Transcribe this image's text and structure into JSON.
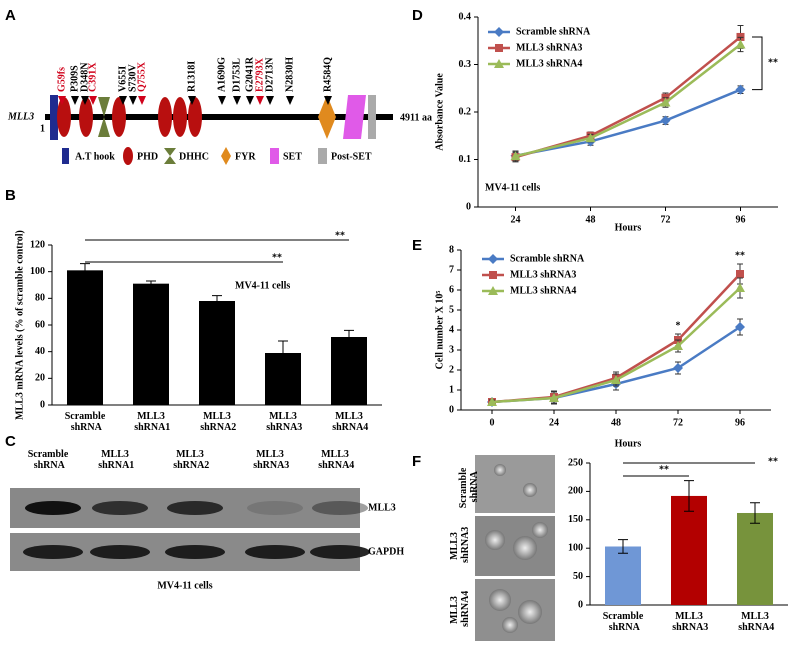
{
  "panel_labels": [
    "A",
    "B",
    "C",
    "D",
    "E",
    "F"
  ],
  "diagram_a": {
    "gene": "MLL3",
    "start": "1",
    "end": "4911 aa",
    "mutations": [
      {
        "label": "G59fs",
        "color": "#d0021b"
      },
      {
        "label": "P309S",
        "color": "#000000"
      },
      {
        "label": "D348N",
        "color": "#000000"
      },
      {
        "label": "C391X",
        "color": "#d0021b"
      },
      {
        "label": "V655I",
        "color": "#000000"
      },
      {
        "label": "S730V",
        "color": "#000000"
      },
      {
        "label": "Q755X",
        "color": "#d0021b"
      },
      {
        "label": "R1318I",
        "color": "#000000"
      },
      {
        "label": "A1690G",
        "color": "#000000"
      },
      {
        "label": "D1753L",
        "color": "#000000"
      },
      {
        "label": "G2041R",
        "color": "#000000"
      },
      {
        "label": "E2793X",
        "color": "#d0021b"
      },
      {
        "label": "D2713N",
        "color": "#000000"
      },
      {
        "label": "N2830H",
        "color": "#000000"
      },
      {
        "label": "R4584Q",
        "color": "#000000"
      }
    ],
    "legend": [
      "A.T hook",
      "PHD",
      "DHHC",
      "FYR",
      "SET",
      "Post-SET"
    ]
  },
  "blot_c": {
    "lanes": [
      "Scramble shRNA",
      "MLL3 shRNA1",
      "MLL3 shRNA2",
      "MLL3 shRNA3",
      "MLL3 shRNA4"
    ],
    "bands": [
      "MLL3",
      "GAPDH"
    ],
    "caption": "MV4-11 cells"
  },
  "images_f": {
    "rows": [
      "Scramble shRNA",
      "MLL3 shRNA3",
      "MLL3 shRNA4"
    ]
  },
  "chart_data": [
    {
      "type": "bar",
      "ylabel": "MLL3 mRNA levels (% of scramble control)",
      "categories": [
        "Scramble shRNA",
        "MLL3 shRNA1",
        "MLL3 shRNA2",
        "MLL3 shRNA3",
        "MLL3 shRNA4"
      ],
      "values": [
        101,
        91,
        78,
        39,
        51
      ],
      "errors": [
        5,
        2,
        4,
        9,
        5
      ],
      "colors": [
        "#000000",
        "#000000",
        "#000000",
        "#000000",
        "#000000"
      ],
      "ylim": [
        0,
        120
      ],
      "yticks": [
        0,
        20,
        40,
        60,
        80,
        100,
        120
      ],
      "note": "MV4-11 cells",
      "significance": [
        "**",
        "**"
      ]
    },
    {
      "type": "line",
      "xlabel": "Hours",
      "ylabel": "Absorbance Value",
      "x": [
        24,
        48,
        72,
        96
      ],
      "xlim": [
        12,
        108
      ],
      "xticks": [
        24,
        48,
        72,
        96
      ],
      "ylim": [
        0,
        0.4
      ],
      "yticks": [
        0,
        0.1,
        0.2,
        0.3,
        0.4
      ],
      "series": [
        {
          "name": "Scramble shRNA",
          "color": "#4a7bc4",
          "marker": "diamond",
          "values": [
            0.108,
            0.138,
            0.182,
            0.247
          ],
          "errors": [
            0.01,
            0.008,
            0.008,
            0.008
          ]
        },
        {
          "name": "MLL3 shRNA3",
          "color": "#c0504d",
          "marker": "square",
          "values": [
            0.105,
            0.15,
            0.23,
            0.358
          ],
          "errors": [
            0.01,
            0.008,
            0.01,
            0.024
          ]
        },
        {
          "name": "MLL3 shRNA4",
          "color": "#9bbb59",
          "marker": "triangle",
          "values": [
            0.107,
            0.145,
            0.22,
            0.342
          ],
          "errors": [
            0.01,
            0.008,
            0.01,
            0.015
          ]
        }
      ],
      "note": "MV4-11 cells",
      "significance": [
        "**"
      ]
    },
    {
      "type": "line",
      "xlabel": "Hours",
      "ylabel": "Cell number X 10⁵",
      "x": [
        0,
        24,
        48,
        72,
        96
      ],
      "xlim": [
        -12,
        108
      ],
      "xticks": [
        0,
        24,
        48,
        72,
        96
      ],
      "ylim": [
        0,
        8
      ],
      "yticks": [
        0,
        1,
        2,
        3,
        4,
        5,
        6,
        7,
        8
      ],
      "series": [
        {
          "name": "Scramble shRNA",
          "color": "#4a7bc4",
          "marker": "diamond",
          "values": [
            0.4,
            0.6,
            1.3,
            2.1,
            4.15
          ],
          "errors": [
            0.1,
            0.3,
            0.3,
            0.3,
            0.4
          ]
        },
        {
          "name": "MLL3 shRNA3",
          "color": "#c0504d",
          "marker": "square",
          "values": [
            0.4,
            0.65,
            1.6,
            3.5,
            6.8
          ],
          "errors": [
            0.1,
            0.3,
            0.3,
            0.3,
            0.5
          ]
        },
        {
          "name": "MLL3 shRNA4",
          "color": "#9bbb59",
          "marker": "triangle",
          "values": [
            0.4,
            0.6,
            1.5,
            3.2,
            6.1
          ],
          "errors": [
            0.1,
            0.3,
            0.3,
            0.3,
            0.5
          ]
        }
      ],
      "significance": [
        "*",
        "**"
      ]
    },
    {
      "type": "bar",
      "categories": [
        "Scramble shRNA",
        "MLL3 shRNA3",
        "MLL3 shRNA4"
      ],
      "values": [
        103,
        192,
        162
      ],
      "errors": [
        12,
        27,
        18
      ],
      "colors": [
        "#6f97d6",
        "#b30000",
        "#77933c"
      ],
      "ylim": [
        0,
        250
      ],
      "yticks": [
        0,
        50,
        100,
        150,
        200,
        250
      ],
      "significance": [
        "**",
        "**"
      ]
    }
  ]
}
